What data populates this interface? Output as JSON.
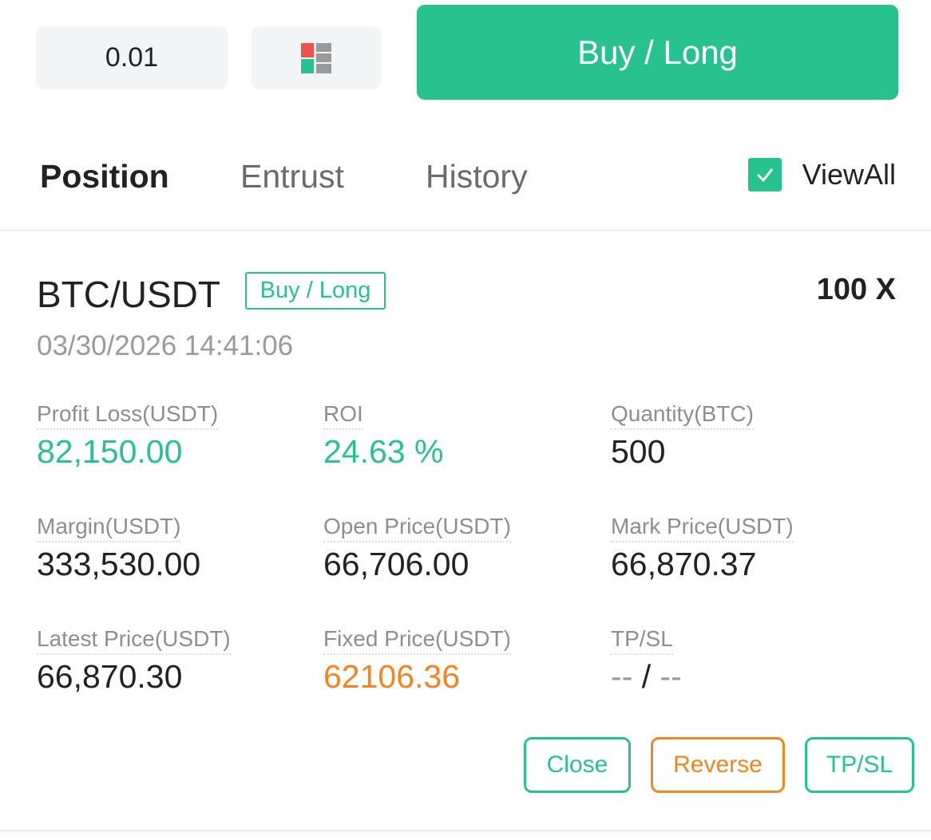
{
  "order": {
    "quantity_value": "0.01",
    "layout_icon": "order-book-layout-icon",
    "buy_label": "Buy / Long"
  },
  "tabs": [
    {
      "label": "Position",
      "active": true
    },
    {
      "label": "Entrust",
      "active": false
    },
    {
      "label": "History",
      "active": false
    }
  ],
  "view_all": {
    "label": "ViewAll",
    "checked": true
  },
  "position": {
    "pair": "BTC/USDT",
    "side": "Buy / Long",
    "leverage": "100 X",
    "timestamp": "03/30/2026 14:41:06",
    "stats": {
      "profit_loss": {
        "label": "Profit Loss(USDT)",
        "value": "82,150.00"
      },
      "roi": {
        "label": "ROI",
        "value": "24.63 %"
      },
      "quantity": {
        "label": "Quantity(BTC)",
        "value": "500"
      },
      "margin": {
        "label": "Margin(USDT)",
        "value": "333,530.00"
      },
      "open_price": {
        "label": "Open Price(USDT)",
        "value": "66,706.00"
      },
      "mark_price": {
        "label": "Mark Price(USDT)",
        "value": "66,870.37"
      },
      "latest_price": {
        "label": "Latest Price(USDT)",
        "value": "66,870.30"
      },
      "fixed_price": {
        "label": "Fixed Price(USDT)",
        "value": "62106.36"
      },
      "tpsl": {
        "label": "TP/SL",
        "tp": "--",
        "separator": "/",
        "sl": "--"
      }
    },
    "actions": {
      "close": "Close",
      "reverse": "Reverse",
      "tpsl": "TP/SL"
    }
  },
  "colors": {
    "accent_green": "#27c28e",
    "accent_orange": "#f5841f",
    "accent_red": "#f0524f",
    "muted_gray": "#9a9a9a"
  }
}
